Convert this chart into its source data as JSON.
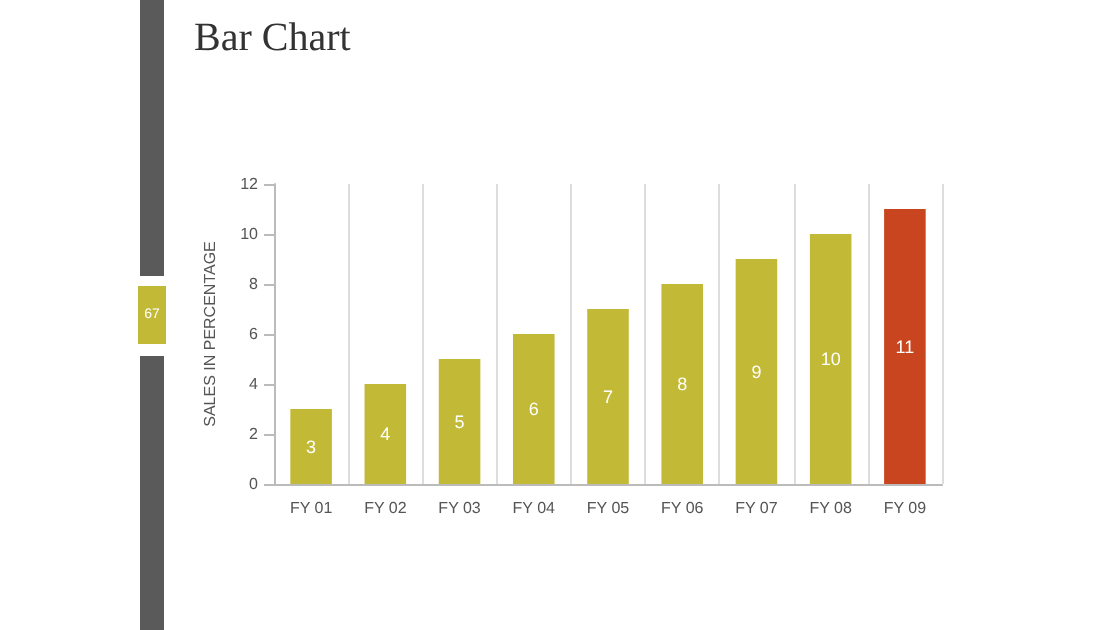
{
  "chart_data": {
    "type": "bar",
    "title": "Bar Chart",
    "ylabel": "SALES IN PERCENTAGE",
    "categories": [
      "FY 01",
      "FY 02",
      "FY 03",
      "FY 04",
      "FY 05",
      "FY 06",
      "FY 07",
      "FY 08",
      "FY 09"
    ],
    "values": [
      3,
      4,
      5,
      6,
      7,
      8,
      9,
      10,
      11
    ],
    "colors": [
      "#c2b936",
      "#c2b936",
      "#c2b936",
      "#c2b936",
      "#c2b936",
      "#c2b936",
      "#c2b936",
      "#c2b936",
      "#c9451f"
    ],
    "ylim": [
      0,
      12
    ],
    "yticks": [
      0,
      2,
      4,
      6,
      8,
      10,
      12
    ],
    "grid": "x",
    "data_labels": true,
    "annotations": [
      "67"
    ]
  }
}
